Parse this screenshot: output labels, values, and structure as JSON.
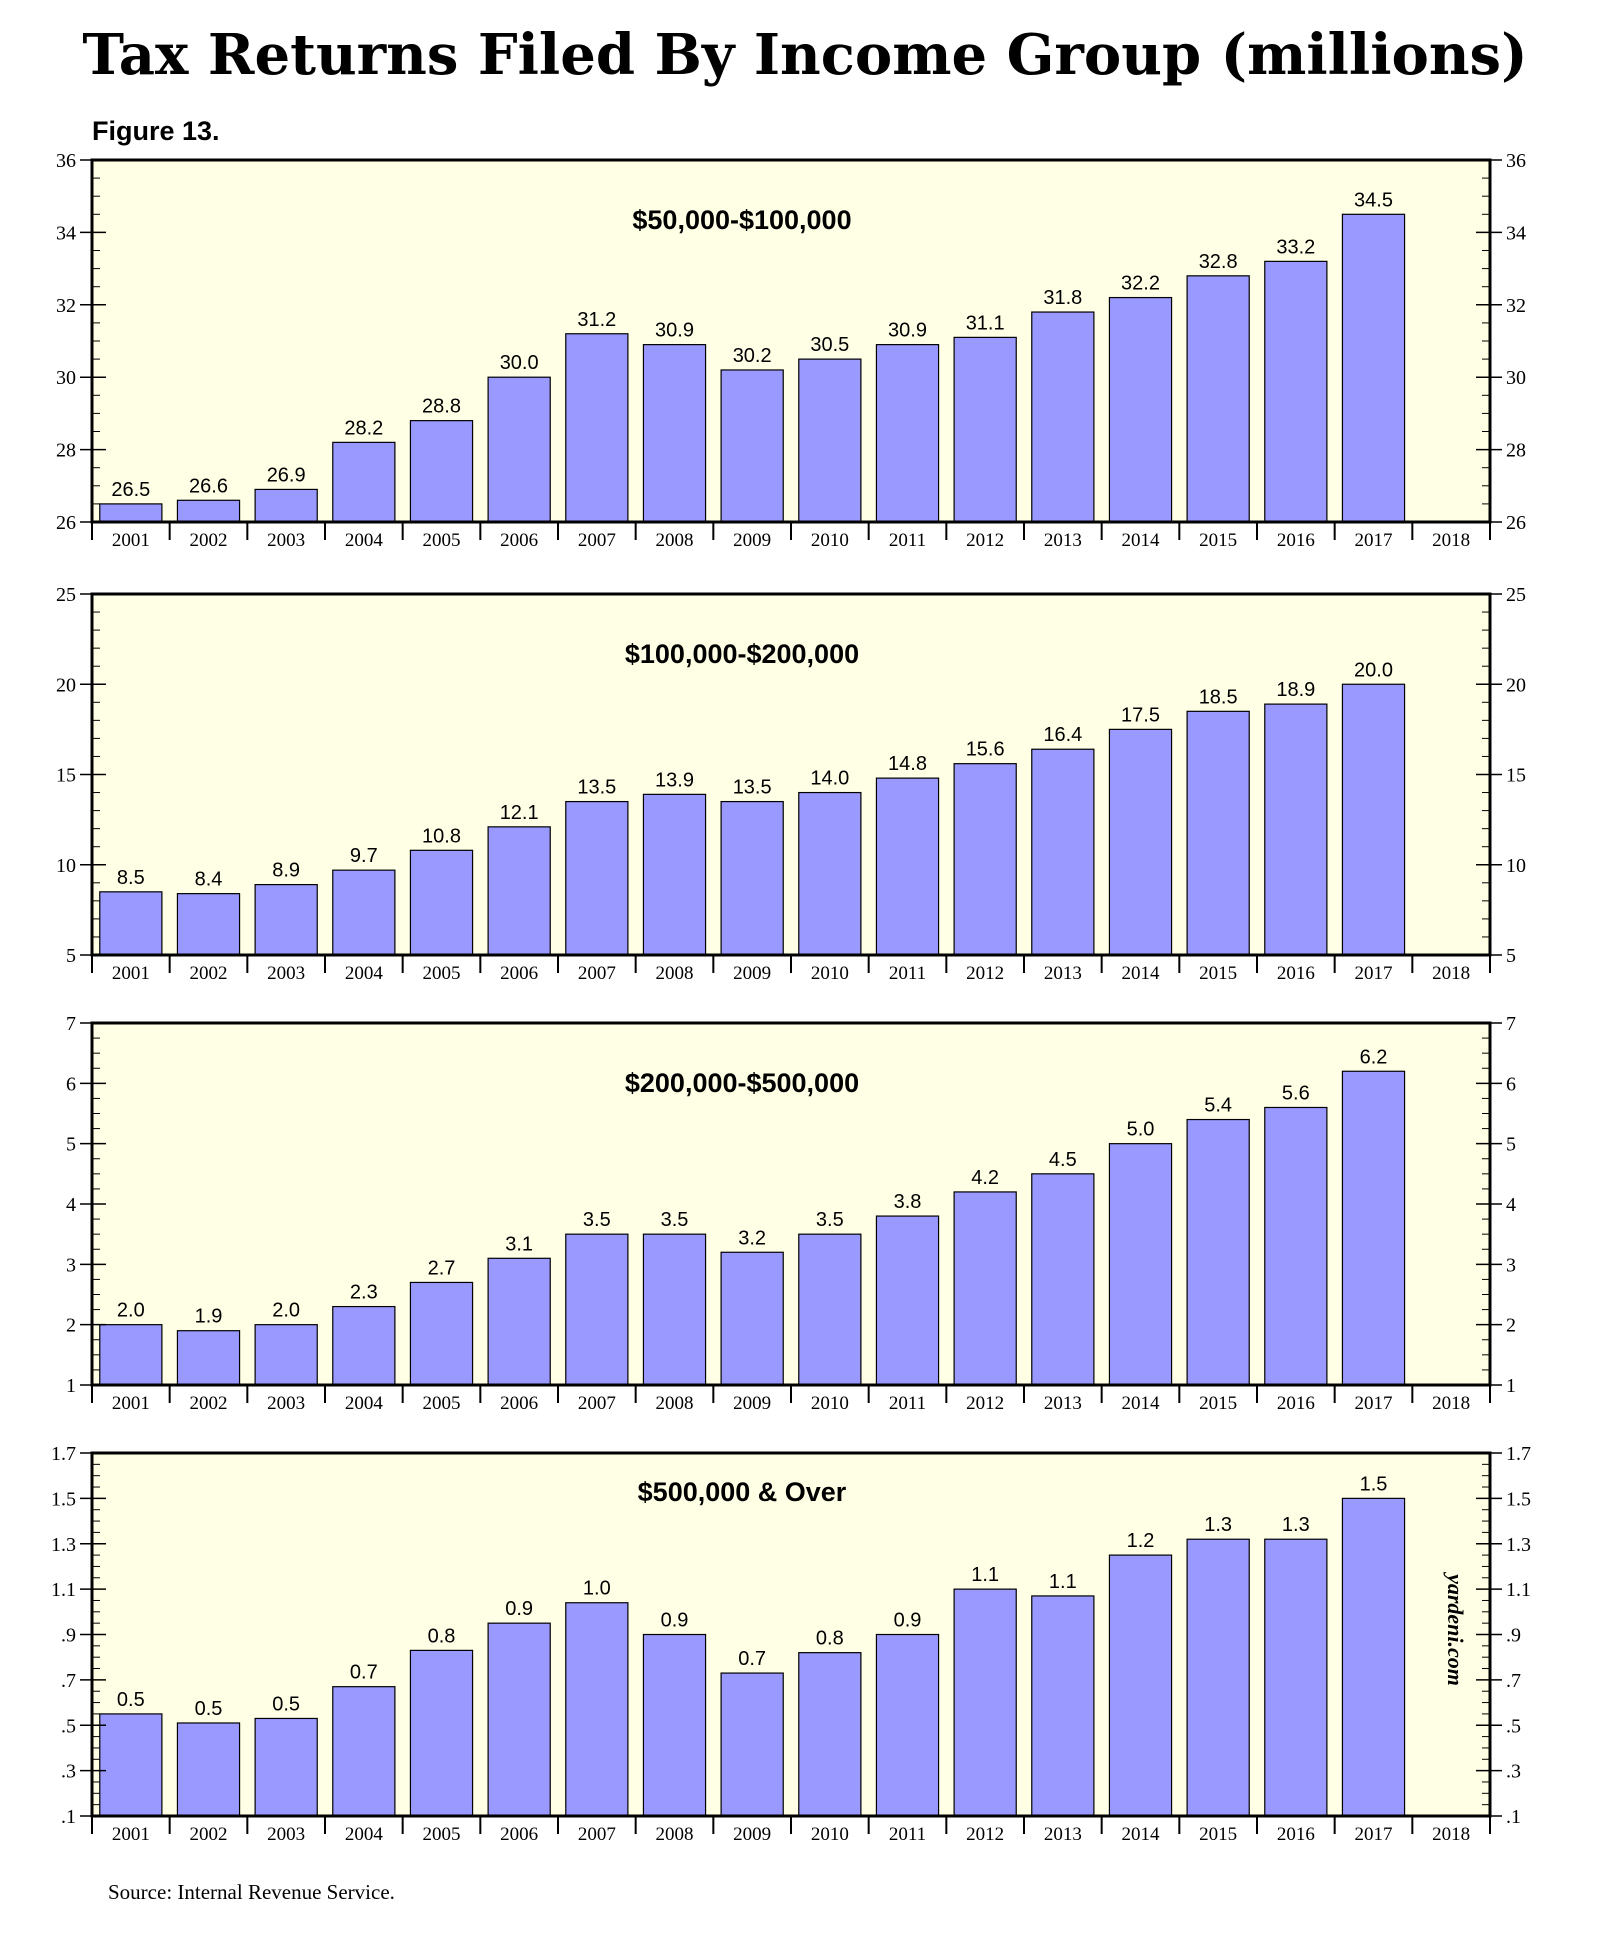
{
  "title": "Tax Returns Filed By Income Group (millions)",
  "figure_label": "Figure 13.",
  "source": "Source: Internal Revenue Service.",
  "watermark": "yardeni.com",
  "colors": {
    "bar": "#9999ff",
    "panel_bg": "#ffffe6",
    "frame": "#000000"
  },
  "chart_data": [
    {
      "type": "bar",
      "title": "$50,000-$100,000",
      "categories": [
        "2001",
        "2002",
        "2003",
        "2004",
        "2005",
        "2006",
        "2007",
        "2008",
        "2009",
        "2010",
        "2011",
        "2012",
        "2013",
        "2014",
        "2015",
        "2016",
        "2017",
        "2018"
      ],
      "values": [
        26.5,
        26.6,
        26.9,
        28.2,
        28.8,
        30.0,
        31.2,
        30.9,
        30.2,
        30.5,
        30.9,
        31.1,
        31.8,
        32.2,
        32.8,
        33.2,
        34.5,
        null
      ],
      "value_labels": [
        "26.5",
        "26.6",
        "26.9",
        "28.2",
        "28.8",
        "30.0",
        "31.2",
        "30.9",
        "30.2",
        "30.5",
        "30.9",
        "31.1",
        "31.8",
        "32.2",
        "32.8",
        "33.2",
        "34.5",
        ""
      ],
      "ylim": [
        26,
        36
      ],
      "yticks": [
        26,
        28,
        30,
        32,
        34,
        36
      ],
      "ytick_labels": [
        "26",
        "28",
        "30",
        "32",
        "34",
        "36"
      ],
      "minor_step": 0.5
    },
    {
      "type": "bar",
      "title": "$100,000-$200,000",
      "categories": [
        "2001",
        "2002",
        "2003",
        "2004",
        "2005",
        "2006",
        "2007",
        "2008",
        "2009",
        "2010",
        "2011",
        "2012",
        "2013",
        "2014",
        "2015",
        "2016",
        "2017",
        "2018"
      ],
      "values": [
        8.5,
        8.4,
        8.9,
        9.7,
        10.8,
        12.1,
        13.5,
        13.9,
        13.5,
        14.0,
        14.8,
        15.6,
        16.4,
        17.5,
        18.5,
        18.9,
        20.0,
        null
      ],
      "value_labels": [
        "8.5",
        "8.4",
        "8.9",
        "9.7",
        "10.8",
        "12.1",
        "13.5",
        "13.9",
        "13.5",
        "14.0",
        "14.8",
        "15.6",
        "16.4",
        "17.5",
        "18.5",
        "18.9",
        "20.0",
        ""
      ],
      "ylim": [
        5,
        25
      ],
      "yticks": [
        5,
        10,
        15,
        20,
        25
      ],
      "ytick_labels": [
        "5",
        "10",
        "15",
        "20",
        "25"
      ],
      "minor_step": 1
    },
    {
      "type": "bar",
      "title": "$200,000-$500,000",
      "categories": [
        "2001",
        "2002",
        "2003",
        "2004",
        "2005",
        "2006",
        "2007",
        "2008",
        "2009",
        "2010",
        "2011",
        "2012",
        "2013",
        "2014",
        "2015",
        "2016",
        "2017",
        "2018"
      ],
      "values": [
        2.0,
        1.9,
        2.0,
        2.3,
        2.7,
        3.1,
        3.5,
        3.5,
        3.2,
        3.5,
        3.8,
        4.2,
        4.5,
        5.0,
        5.4,
        5.6,
        6.2,
        null
      ],
      "value_labels": [
        "2.0",
        "1.9",
        "2.0",
        "2.3",
        "2.7",
        "3.1",
        "3.5",
        "3.5",
        "3.2",
        "3.5",
        "3.8",
        "4.2",
        "4.5",
        "5.0",
        "5.4",
        "5.6",
        "6.2",
        ""
      ],
      "ylim": [
        1,
        7
      ],
      "yticks": [
        1,
        2,
        3,
        4,
        5,
        6,
        7
      ],
      "ytick_labels": [
        "1",
        "2",
        "3",
        "4",
        "5",
        "6",
        "7"
      ],
      "minor_step": 0.25
    },
    {
      "type": "bar",
      "title": "$500,000 & Over",
      "categories": [
        "2001",
        "2002",
        "2003",
        "2004",
        "2005",
        "2006",
        "2007",
        "2008",
        "2009",
        "2010",
        "2011",
        "2012",
        "2013",
        "2014",
        "2015",
        "2016",
        "2017",
        "2018"
      ],
      "values": [
        0.55,
        0.51,
        0.53,
        0.67,
        0.83,
        0.95,
        1.04,
        0.9,
        0.73,
        0.82,
        0.9,
        1.1,
        1.07,
        1.25,
        1.32,
        1.32,
        1.5,
        null
      ],
      "value_labels": [
        "0.5",
        "0.5",
        "0.5",
        "0.7",
        "0.8",
        "0.9",
        "1.0",
        "0.9",
        "0.7",
        "0.8",
        "0.9",
        "1.1",
        "1.1",
        "1.2",
        "1.3",
        "1.3",
        "1.5",
        ""
      ],
      "ylim": [
        0.1,
        1.7
      ],
      "yticks": [
        0.1,
        0.3,
        0.5,
        0.7,
        0.9,
        1.1,
        1.3,
        1.5,
        1.7
      ],
      "ytick_labels": [
        ".1",
        ".3",
        ".5",
        ".7",
        ".9",
        "1.1",
        "1.3",
        "1.5",
        "1.7"
      ],
      "minor_step": 0.05
    }
  ]
}
